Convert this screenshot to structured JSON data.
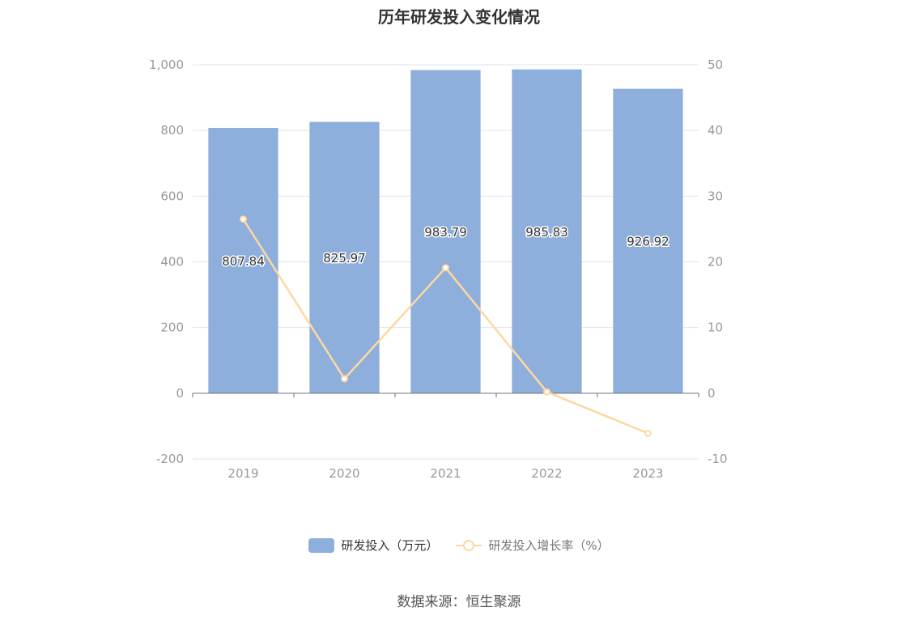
{
  "chart_data": {
    "type": "bar",
    "title": "历年研发投入变化情况",
    "categories": [
      "2019",
      "2020",
      "2021",
      "2022",
      "2023"
    ],
    "series": [
      {
        "name": "研发投入（万元）",
        "type": "bar",
        "axis": "left",
        "values": [
          807.84,
          825.97,
          983.79,
          985.83,
          926.92
        ],
        "color": "#8eaedb"
      },
      {
        "name": "研发投入增长率（%）",
        "type": "line",
        "axis": "right",
        "values": [
          26.5,
          2.2,
          19.1,
          0.2,
          -6.1
        ],
        "color": "#fdd8a0"
      }
    ],
    "y_left": {
      "lim": [
        -200,
        1000
      ],
      "ticks": [
        -200,
        0,
        200,
        400,
        600,
        800,
        1000
      ],
      "tick_labels": [
        "-200",
        "0",
        "200",
        "400",
        "600",
        "800",
        "1,000"
      ]
    },
    "y_right": {
      "lim": [
        -10,
        50
      ],
      "ticks": [
        -10,
        0,
        10,
        20,
        30,
        40,
        50
      ],
      "tick_labels": [
        "-10",
        "0",
        "10",
        "20",
        "30",
        "40",
        "50"
      ]
    },
    "data_labels": [
      "807.84",
      "825.97",
      "983.79",
      "985.83",
      "926.92"
    ],
    "grid": true,
    "legend_position": "bottom"
  },
  "legend": {
    "bar_label": "研发投入（万元）",
    "line_label": "研发投入增长率（%）"
  },
  "source_text": "数据来源：恒生聚源"
}
